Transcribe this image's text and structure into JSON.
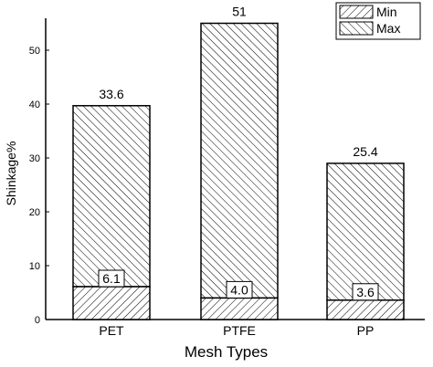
{
  "chart_data": {
    "type": "bar",
    "stacked": true,
    "categories": [
      "PET",
      "PTFE",
      "PP"
    ],
    "series": [
      {
        "name": "Min",
        "values": [
          6.1,
          4.0,
          3.6
        ]
      },
      {
        "name": "Max",
        "values": [
          33.6,
          51,
          25.4
        ]
      }
    ],
    "max_labels": [
      "33.6",
      "51",
      "25.4"
    ],
    "min_labels": [
      "6.1",
      "4.0",
      "3.6"
    ],
    "xlabel": "Mesh Types",
    "ylabel": "Shinkage%",
    "ylim": [
      0,
      55
    ],
    "yticks": [
      0,
      10,
      20,
      30,
      40,
      50
    ],
    "legend_position": "top-right",
    "grid": false,
    "colors": {
      "fill": "#ffffff",
      "stroke": "#000000"
    }
  }
}
